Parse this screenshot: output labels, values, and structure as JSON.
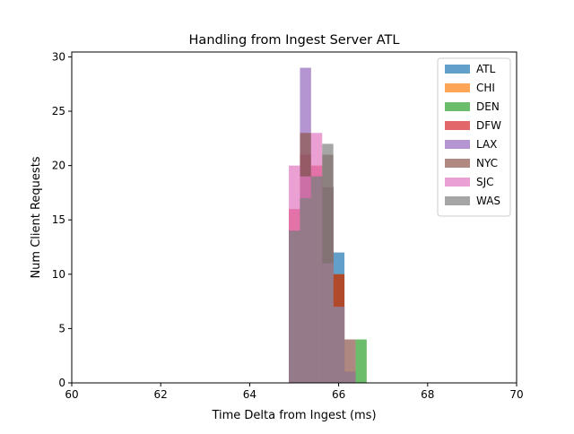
{
  "chart_data": {
    "type": "histogram",
    "title": "Handling from Ingest Server ATL",
    "xlabel": "Time Delta from Ingest (ms)",
    "ylabel": "Num Client Requests",
    "xlim": [
      60,
      70
    ],
    "ylim": [
      0,
      30.45
    ],
    "xticks": [
      60,
      62,
      64,
      66,
      68,
      70
    ],
    "yticks": [
      0,
      5,
      10,
      15,
      20,
      25,
      30
    ],
    "bins": [
      64.88,
      65.13,
      65.38,
      65.63,
      65.88,
      66.13,
      66.38,
      66.63
    ],
    "legend_position": "upper right",
    "bar_alpha": 0.7,
    "series": [
      {
        "name": "ATL",
        "color": "#1f77b4",
        "values": [
          14,
          17,
          19,
          18,
          12,
          1,
          0
        ]
      },
      {
        "name": "CHI",
        "color": "#ff7f0e",
        "values": [
          14,
          17,
          19,
          18,
          10,
          1,
          0
        ]
      },
      {
        "name": "DEN",
        "color": "#2ca02c",
        "values": [
          14,
          17,
          19,
          18,
          10,
          1,
          4
        ]
      },
      {
        "name": "DFW",
        "color": "#d62728",
        "values": [
          16,
          21,
          20,
          18,
          10,
          1,
          0
        ]
      },
      {
        "name": "LAX",
        "color": "#9467bd",
        "values": [
          14,
          29,
          19,
          18,
          7,
          1,
          0
        ]
      },
      {
        "name": "NYC",
        "color": "#8c564b",
        "values": [
          14,
          23,
          19,
          21,
          7,
          4,
          0
        ]
      },
      {
        "name": "SJC",
        "color": "#e377c2",
        "values": [
          20,
          19,
          23,
          11,
          7,
          1,
          0
        ]
      },
      {
        "name": "WAS",
        "color": "#7f7f7f",
        "values": [
          14,
          17,
          19,
          22,
          7,
          1,
          0
        ]
      }
    ]
  }
}
